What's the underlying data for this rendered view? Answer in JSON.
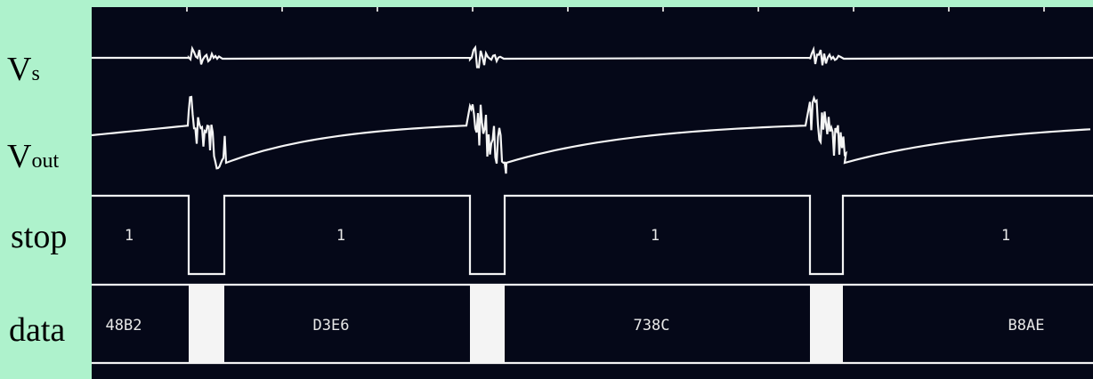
{
  "labels": {
    "vs": {
      "main": "V",
      "sub": "s"
    },
    "vout": {
      "main": "V",
      "sub": "out"
    },
    "stop": "stop",
    "data": "data"
  },
  "stop_values": [
    "1",
    "1",
    "1",
    "1"
  ],
  "data_words": [
    "48B2",
    "D3E6",
    "738C",
    "B8AE"
  ]
}
